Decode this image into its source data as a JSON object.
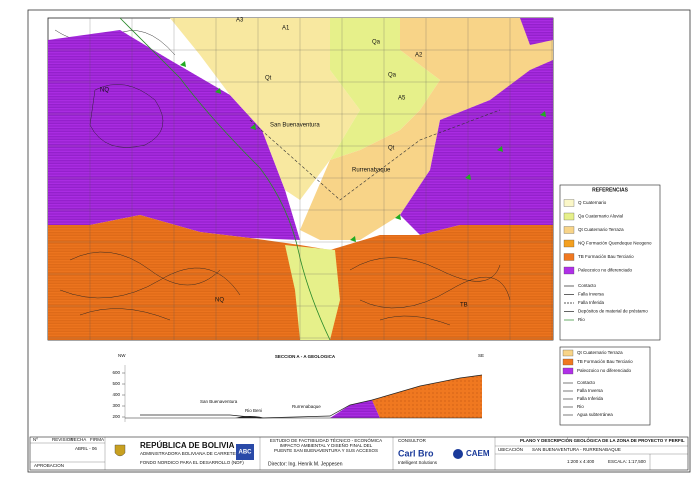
{
  "map": {
    "labels": [
      "Qt",
      "Qa",
      "A5",
      "Qt",
      "Qa",
      "A1",
      "A2",
      "A3",
      "San Buenaventura",
      "Rurrenabaque",
      "NQ",
      "NQ",
      "TB"
    ]
  },
  "legend": {
    "title": "REFERENCIAS",
    "units": [
      {
        "label": "Q Cuaternario",
        "color": "#fbf7c8"
      },
      {
        "label": "Qa Cuaternario Aluvial",
        "color": "#e6f08a"
      },
      {
        "label": "Qt Cuaternario Terraza",
        "color": "#f8d488"
      },
      {
        "label": "NQ Formación Quendeque Neogeno",
        "color": "#f4a020"
      },
      {
        "label": "TB Formación Bau Terciario",
        "color": "#f07820"
      },
      {
        "label": "Paleozoico no diferenciado",
        "color": "#b030e8"
      }
    ],
    "symbols": [
      "Contacto",
      "Falla Inversa",
      "Falla Inferida",
      "Depósitos de material de préstamo",
      "Rio"
    ]
  },
  "section": {
    "title": "SECCION A - A GEOLOGICA",
    "left": "NW",
    "right": "SE",
    "yticks": [
      600,
      500,
      400,
      300,
      200
    ],
    "places": [
      "San Buenaventura",
      "Rio Beni",
      "Rurrenabaque"
    ],
    "legend": [
      {
        "label": "Qt Cuaternario Terraza",
        "color": "#f8d488"
      },
      {
        "label": "TB Formación Bau Terciario",
        "color": "#f07820"
      },
      {
        "label": "Paleozoico no diferenciado",
        "color": "#b030e8"
      }
    ],
    "symbols": [
      "Contacto",
      "Falla Inversa",
      "Falla Inferida",
      "Rio",
      "Agua subterránea"
    ]
  },
  "title_block": {
    "revision_headers": [
      "Nº",
      "REVISION",
      "FECHA",
      "FIRMA"
    ],
    "date": "ABRIL - 06",
    "approval": "APROBACION",
    "country": "REPÚBLICA DE BOLIVIA",
    "agency": "ADMINISTRADORA BOLIVIANA DE CARRETERAS",
    "fund": "FONDO NORDICO PARA EL DESARROLLO (NDF)",
    "agency_logo": "ABC",
    "study": [
      "ESTUDIO DE FACTIBILIDAD TÉCNICO - ECONÓMICA",
      "IMPACTO AMBIENTAL Y DISEÑO FINAL DEL",
      "PUENTE SAN BUENAVENTURA Y SUS ACCESOS"
    ],
    "director": "Director: Ing. Henrik M. Jeppesen",
    "consultant_label": "CONSULTOR",
    "consultant": "Carl Bro",
    "consultant_tagline": "Intelligent Solutions",
    "partner": "CAEM",
    "plan_title": "PLANO Y DESCRIPCIÓN GEOLÓGICA DE LA ZONA DE PROYECTO Y PERFIL",
    "location_label": "UBICACIÓN",
    "location": "SAN BUENAVENTURA - RURRENABAQUE",
    "scale_section": "1:200 x 4:400",
    "scale": "ESCALA: 1:17,500"
  }
}
